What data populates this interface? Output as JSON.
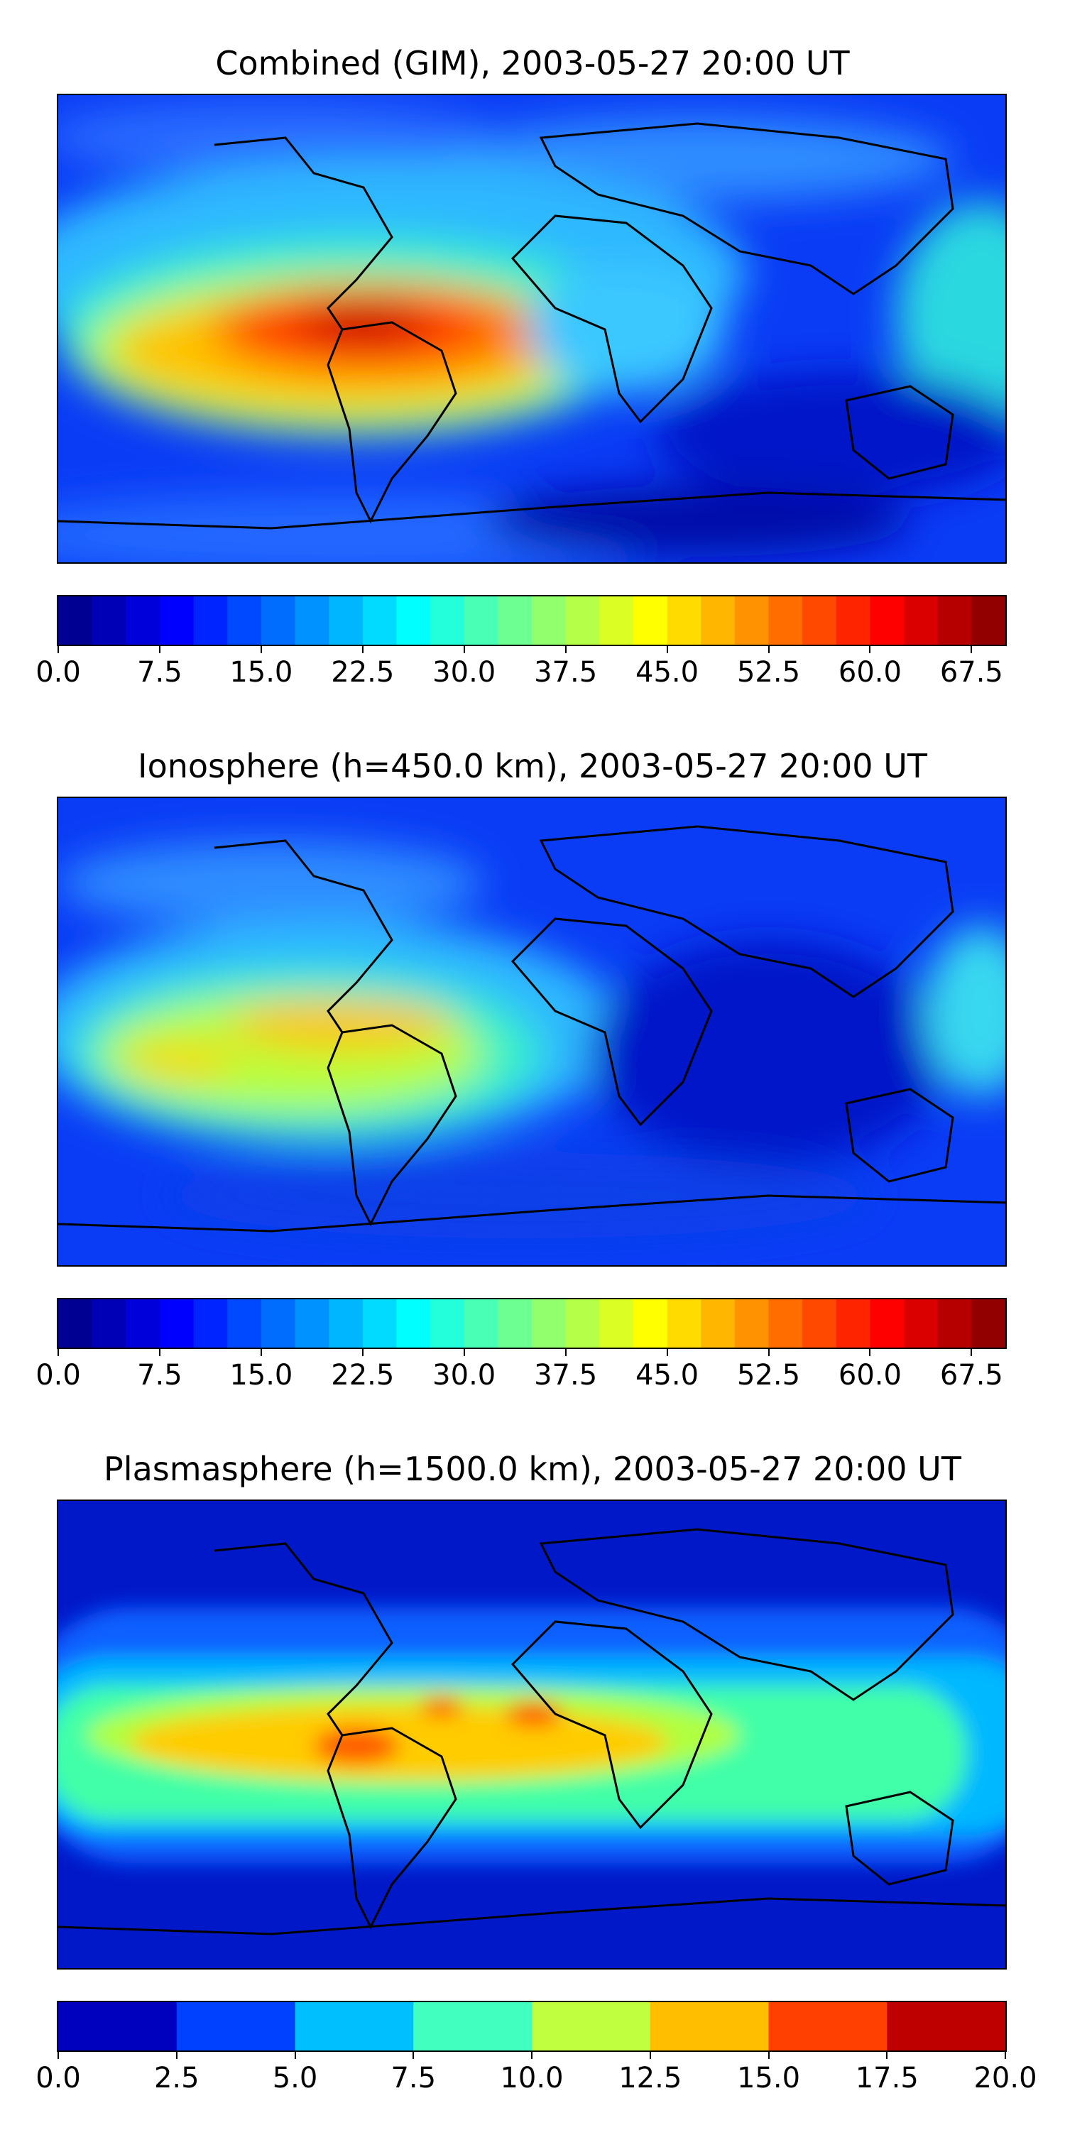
{
  "panels": [
    {
      "title": "Combined (GIM), 2003-05-27 20:00 UT",
      "colorbar": {
        "min": 0.0,
        "max": 70.0,
        "levels": 28,
        "tick_values": [
          0.0,
          7.5,
          15.0,
          22.5,
          30.0,
          37.5,
          45.0,
          52.5,
          60.0,
          67.5
        ],
        "tick_labels": [
          "0.0",
          "7.5",
          "15.0",
          "22.5",
          "30.0",
          "37.5",
          "45.0",
          "52.5",
          "60.0",
          "67.5"
        ]
      }
    },
    {
      "title": "Ionosphere  (h=450.0 km), 2003-05-27 20:00 UT",
      "colorbar": {
        "min": 0.0,
        "max": 70.0,
        "levels": 28,
        "tick_values": [
          0.0,
          7.5,
          15.0,
          22.5,
          30.0,
          37.5,
          45.0,
          52.5,
          60.0,
          67.5
        ],
        "tick_labels": [
          "0.0",
          "7.5",
          "15.0",
          "22.5",
          "30.0",
          "37.5",
          "45.0",
          "52.5",
          "60.0",
          "67.5"
        ]
      }
    },
    {
      "title": "Plasmasphere (h=1500.0 km), 2003-05-27 20:00 UT",
      "colorbar": {
        "min": 0.0,
        "max": 20.0,
        "levels": 8,
        "tick_values": [
          0.0,
          2.5,
          5.0,
          7.5,
          10.0,
          12.5,
          15.0,
          17.5,
          20.0
        ],
        "tick_labels": [
          "0.0",
          "2.5",
          "5.0",
          "7.5",
          "10.0",
          "12.5",
          "15.0",
          "17.5",
          "20.0"
        ]
      }
    }
  ],
  "colormap": "jet"
}
